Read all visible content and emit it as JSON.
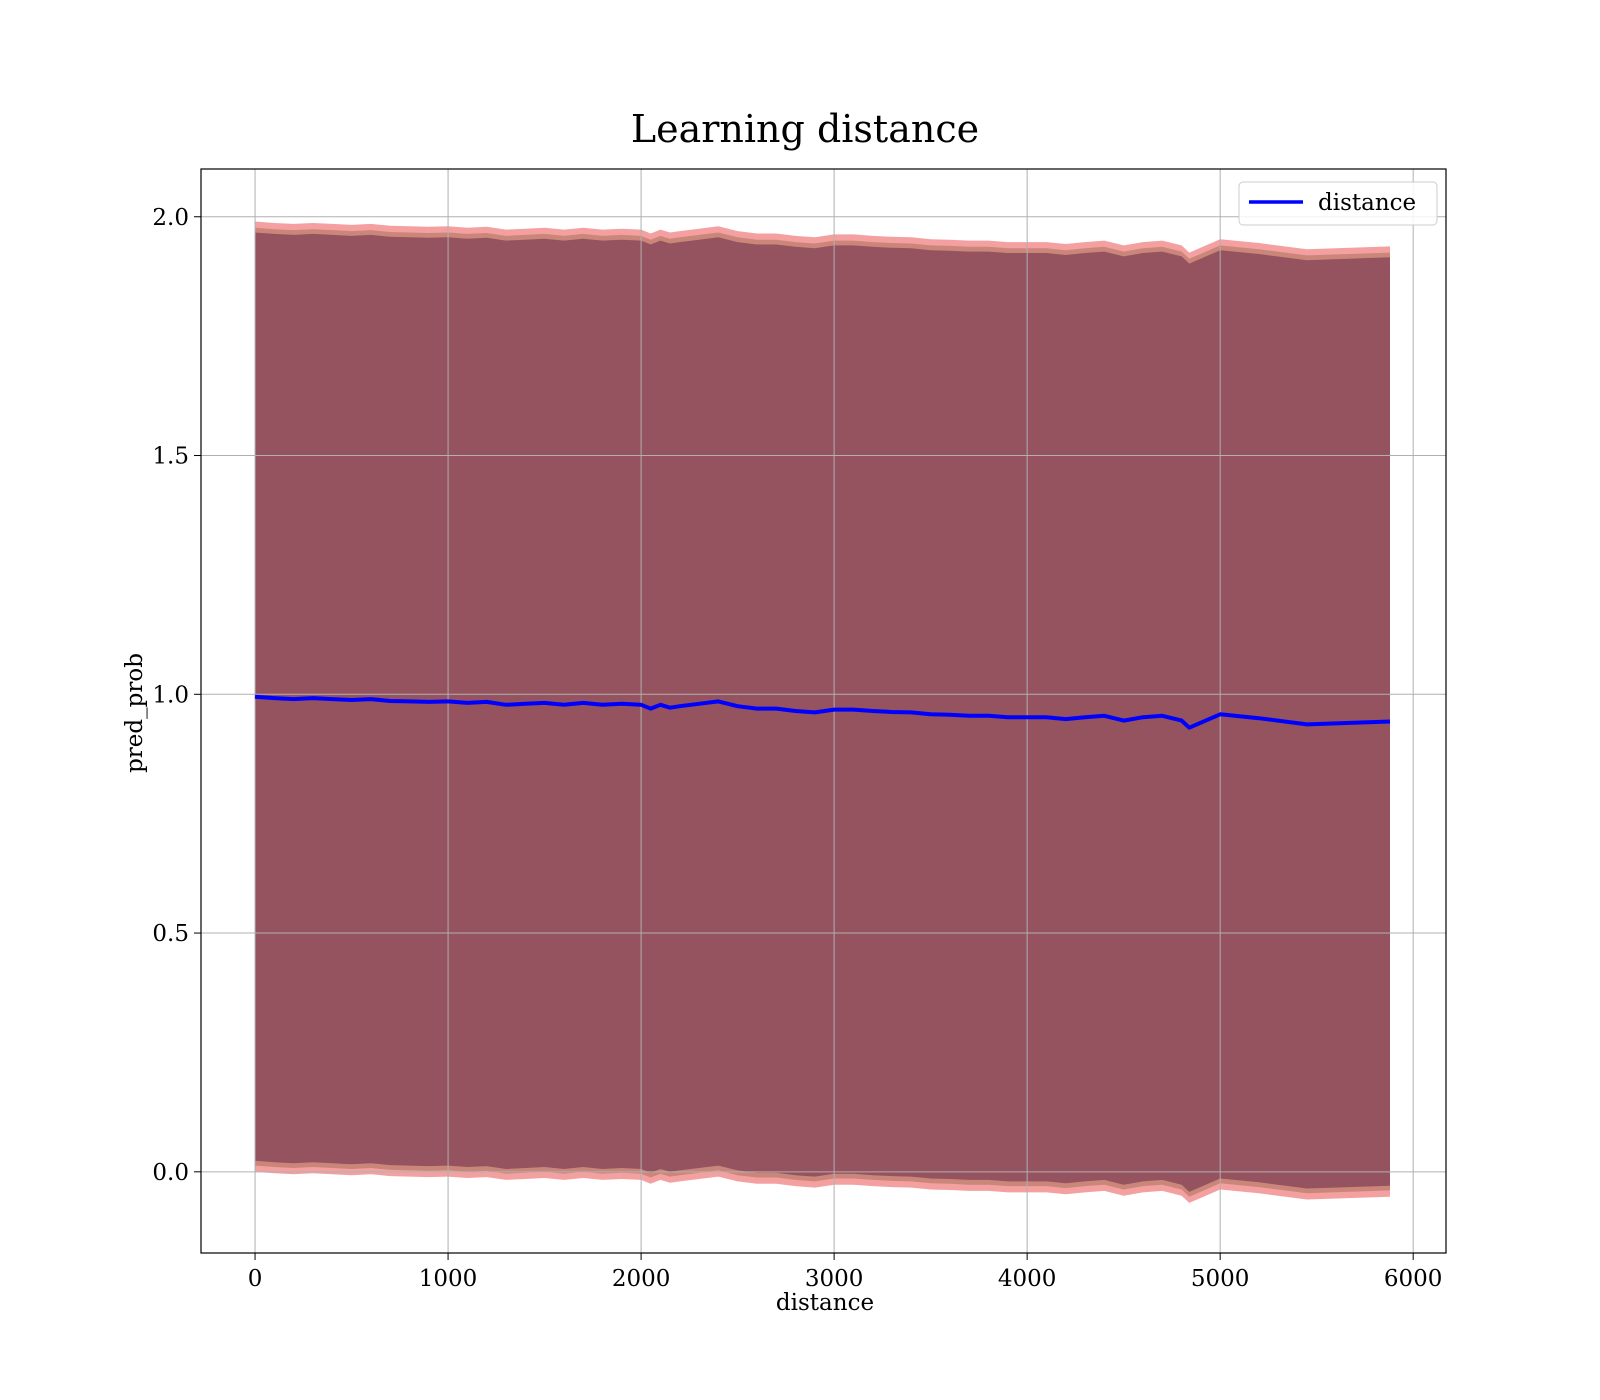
{
  "chart_data": {
    "type": "line",
    "title": "Learning distance",
    "xlabel": "distance",
    "ylabel": "pred_prob",
    "xlim": [
      -280,
      6170
    ],
    "ylim": [
      -0.17,
      2.1
    ],
    "xticks": [
      0,
      1000,
      2000,
      3000,
      4000,
      5000,
      6000
    ],
    "xtick_labels": [
      "0",
      "1000",
      "2000",
      "3000",
      "4000",
      "5000",
      "6000"
    ],
    "yticks": [
      0.0,
      0.5,
      1.0,
      1.5,
      2.0
    ],
    "ytick_labels": [
      "0.0",
      "0.5",
      "1.0",
      "1.5",
      "2.0"
    ],
    "grid": true,
    "legend": {
      "placement": "top-right",
      "entries": [
        "distance"
      ]
    },
    "colors": {
      "line": "#0000ff",
      "band_outer": "#f08080",
      "band_mid": "#c08070",
      "band_inner": "#7f3f55"
    },
    "series": [
      {
        "name": "distance",
        "x": [
          0,
          100,
          200,
          300,
          400,
          500,
          600,
          700,
          800,
          900,
          1000,
          1100,
          1200,
          1300,
          1400,
          1500,
          1600,
          1700,
          1800,
          1900,
          2000,
          2050,
          2100,
          2150,
          2200,
          2300,
          2400,
          2500,
          2600,
          2700,
          2800,
          2900,
          3000,
          3100,
          3200,
          3300,
          3400,
          3500,
          3600,
          3700,
          3800,
          3900,
          4000,
          4100,
          4200,
          4300,
          4400,
          4500,
          4600,
          4700,
          4800,
          4840,
          5000,
          5200,
          5450,
          5880
        ],
        "values": [
          0.995,
          0.992,
          0.99,
          0.992,
          0.99,
          0.988,
          0.99,
          0.986,
          0.985,
          0.984,
          0.985,
          0.982,
          0.984,
          0.978,
          0.98,
          0.982,
          0.978,
          0.982,
          0.978,
          0.98,
          0.978,
          0.97,
          0.978,
          0.972,
          0.975,
          0.98,
          0.985,
          0.975,
          0.97,
          0.97,
          0.965,
          0.962,
          0.968,
          0.968,
          0.965,
          0.963,
          0.962,
          0.958,
          0.957,
          0.955,
          0.955,
          0.952,
          0.952,
          0.952,
          0.948,
          0.952,
          0.955,
          0.945,
          0.952,
          0.955,
          0.945,
          0.93,
          0.958,
          0.95,
          0.937,
          0.943
        ]
      }
    ],
    "bands": [
      {
        "level": "outer",
        "half_width": [
          0.995,
          0.995,
          0.995,
          0.995,
          0.995,
          0.995,
          0.995,
          0.995,
          0.995,
          0.995,
          0.995,
          0.995,
          0.995,
          0.995,
          0.995,
          0.995,
          0.995,
          0.995,
          0.995,
          0.995,
          0.995,
          0.995,
          0.995,
          0.995,
          0.995,
          0.995,
          0.995,
          0.995,
          0.995,
          0.995,
          0.995,
          0.995,
          0.995,
          0.995,
          0.995,
          0.995,
          0.995,
          0.995,
          0.995,
          0.995,
          0.995,
          0.995,
          0.995,
          0.995,
          0.995,
          0.995,
          0.995,
          0.995,
          0.995,
          0.995,
          0.995,
          0.995,
          0.995,
          0.995,
          0.995,
          0.995
        ]
      },
      {
        "level": "middle",
        "half_width": [
          0.982,
          0.982,
          0.982,
          0.982,
          0.982,
          0.982,
          0.982,
          0.982,
          0.982,
          0.982,
          0.982,
          0.982,
          0.982,
          0.982,
          0.982,
          0.982,
          0.982,
          0.982,
          0.982,
          0.982,
          0.982,
          0.982,
          0.982,
          0.982,
          0.982,
          0.982,
          0.982,
          0.982,
          0.982,
          0.982,
          0.982,
          0.982,
          0.982,
          0.982,
          0.982,
          0.982,
          0.982,
          0.982,
          0.982,
          0.982,
          0.982,
          0.982,
          0.982,
          0.982,
          0.982,
          0.982,
          0.982,
          0.982,
          0.982,
          0.982,
          0.982,
          0.982,
          0.982,
          0.982,
          0.982,
          0.982
        ]
      },
      {
        "level": "inner",
        "half_width": [
          0.972,
          0.972,
          0.972,
          0.972,
          0.972,
          0.972,
          0.972,
          0.972,
          0.972,
          0.972,
          0.972,
          0.972,
          0.972,
          0.972,
          0.972,
          0.972,
          0.972,
          0.972,
          0.972,
          0.972,
          0.972,
          0.972,
          0.972,
          0.972,
          0.972,
          0.972,
          0.972,
          0.972,
          0.972,
          0.972,
          0.972,
          0.972,
          0.972,
          0.972,
          0.972,
          0.972,
          0.972,
          0.972,
          0.972,
          0.972,
          0.972,
          0.972,
          0.972,
          0.972,
          0.972,
          0.972,
          0.972,
          0.972,
          0.972,
          0.972,
          0.972,
          0.972,
          0.972,
          0.972,
          0.972,
          0.972
        ]
      }
    ]
  }
}
